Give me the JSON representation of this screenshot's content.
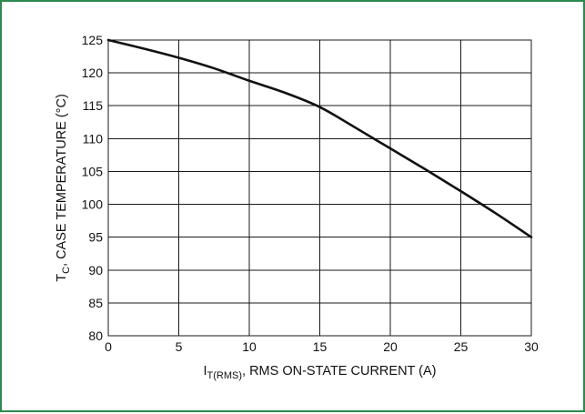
{
  "frame": {
    "border_color": "#2c8a4f"
  },
  "chart_data": {
    "type": "line",
    "title": "",
    "xlabel": {
      "main": "I",
      "subscript": "T(RMS)",
      "rest": ", RMS ON-STATE CURRENT (A)"
    },
    "ylabel": {
      "main": "T",
      "subscript": "C",
      "rest": ", CASE TEMPERATURE (°C)"
    },
    "xlim": [
      0,
      30
    ],
    "ylim": [
      80,
      125
    ],
    "xticks": [
      "0",
      "5",
      "10",
      "15",
      "20",
      "25",
      "30"
    ],
    "yticks": [
      "80",
      "85",
      "90",
      "95",
      "100",
      "105",
      "110",
      "115",
      "120",
      "125"
    ],
    "grid": true,
    "series": [
      {
        "x": [
          0,
          2.5,
          5,
          7.5,
          10,
          12.5,
          15,
          17.5,
          20,
          22.5,
          25,
          27.5,
          30
        ],
        "y": [
          125,
          123.7,
          122.3,
          120.7,
          118.8,
          117.0,
          114.8,
          111.7,
          108.5,
          105.3,
          102.0,
          98.6,
          95.0
        ]
      }
    ]
  }
}
